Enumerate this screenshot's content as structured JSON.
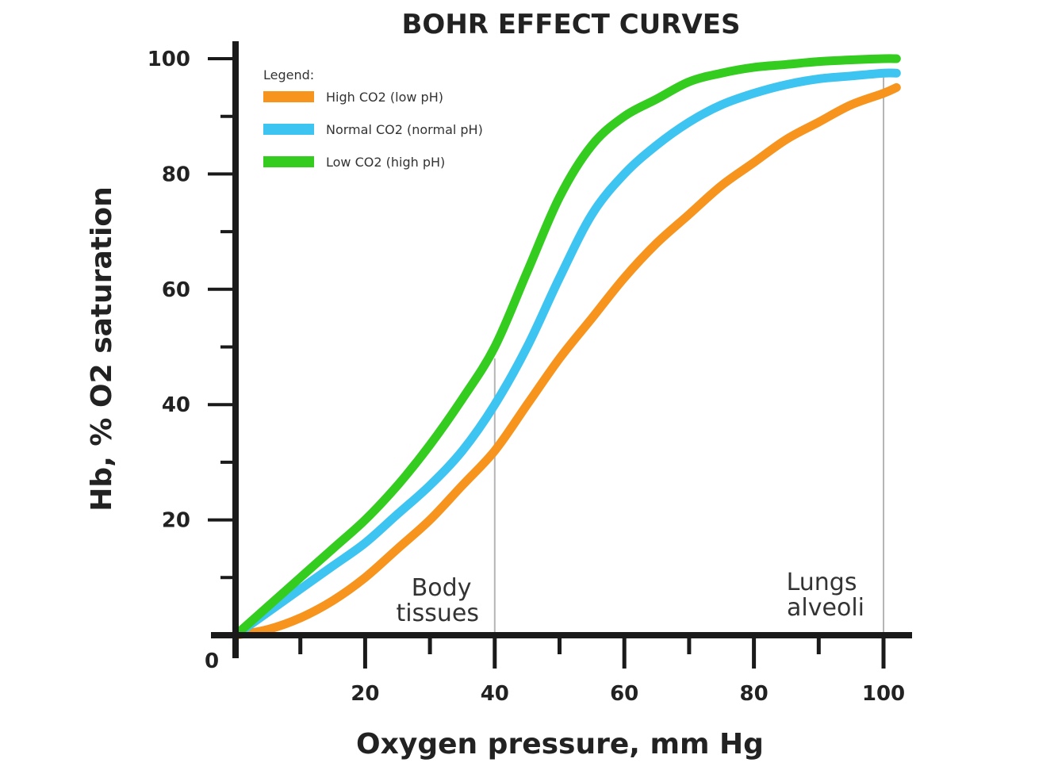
{
  "chart_data": {
    "type": "line",
    "title": "BOHR EFFECT CURVES",
    "xlabel": "Oxygen pressure, mm Hg",
    "ylabel": "Hb, % O2 saturation",
    "xlim": [
      0,
      104
    ],
    "ylim": [
      0,
      100
    ],
    "origin_label": "0",
    "x_ticks": [
      {
        "value": 10,
        "label": ""
      },
      {
        "value": 20,
        "label": "20"
      },
      {
        "value": 30,
        "label": ""
      },
      {
        "value": 40,
        "label": "40"
      },
      {
        "value": 50,
        "label": ""
      },
      {
        "value": 60,
        "label": "60"
      },
      {
        "value": 70,
        "label": ""
      },
      {
        "value": 80,
        "label": "80"
      },
      {
        "value": 90,
        "label": ""
      },
      {
        "value": 100,
        "label": "100"
      }
    ],
    "y_ticks": [
      {
        "value": 10,
        "label": ""
      },
      {
        "value": 20,
        "label": "20"
      },
      {
        "value": 30,
        "label": ""
      },
      {
        "value": 40,
        "label": "40"
      },
      {
        "value": 50,
        "label": ""
      },
      {
        "value": 60,
        "label": "60"
      },
      {
        "value": 70,
        "label": ""
      },
      {
        "value": 80,
        "label": "80"
      },
      {
        "value": 90,
        "label": ""
      },
      {
        "value": 100,
        "label": "100"
      }
    ],
    "legend": {
      "title": "Legend:",
      "position": "top-left"
    },
    "series": [
      {
        "name": "High CO2 (low pH)",
        "color": "#f7941d",
        "x": [
          0,
          5,
          10,
          15,
          20,
          25,
          30,
          35,
          40,
          45,
          50,
          55,
          60,
          65,
          70,
          75,
          80,
          85,
          90,
          95,
          100,
          102
        ],
        "y": [
          0,
          1,
          3,
          6,
          10,
          15,
          20,
          26,
          32,
          40,
          48,
          55,
          62,
          68,
          73,
          78,
          82,
          86,
          89,
          92,
          94,
          95
        ]
      },
      {
        "name": "Normal CO2 (normal pH)",
        "color": "#3ec4f0",
        "x": [
          0,
          5,
          10,
          15,
          20,
          25,
          30,
          35,
          40,
          45,
          50,
          55,
          60,
          65,
          70,
          75,
          80,
          85,
          90,
          95,
          100,
          102
        ],
        "y": [
          0,
          4,
          8,
          12,
          16,
          21,
          26,
          32,
          40,
          50,
          62,
          73,
          80,
          85,
          89,
          92,
          94,
          95.5,
          96.5,
          97,
          97.5,
          97.5
        ]
      },
      {
        "name": "Low CO2 (high pH)",
        "color": "#33cc1f",
        "x": [
          0,
          5,
          10,
          15,
          20,
          25,
          30,
          35,
          40,
          45,
          50,
          55,
          60,
          65,
          70,
          75,
          80,
          85,
          90,
          95,
          100,
          102
        ],
        "y": [
          0,
          5,
          10,
          15,
          20,
          26,
          33,
          41,
          50,
          63,
          76,
          85,
          90,
          93,
          96,
          97.5,
          98.5,
          99,
          99.5,
          99.8,
          100,
          100
        ]
      }
    ],
    "reference_lines": [
      {
        "x": 40,
        "ymax": 48
      },
      {
        "x": 100,
        "ymax": 97
      }
    ],
    "annotations": [
      {
        "name": "body-tissues",
        "x": 40,
        "lines": [
          "Body",
          "tissues"
        ]
      },
      {
        "name": "lungs-alveoli",
        "x": 100,
        "lines": [
          "Lungs",
          "alveoli"
        ]
      }
    ]
  }
}
